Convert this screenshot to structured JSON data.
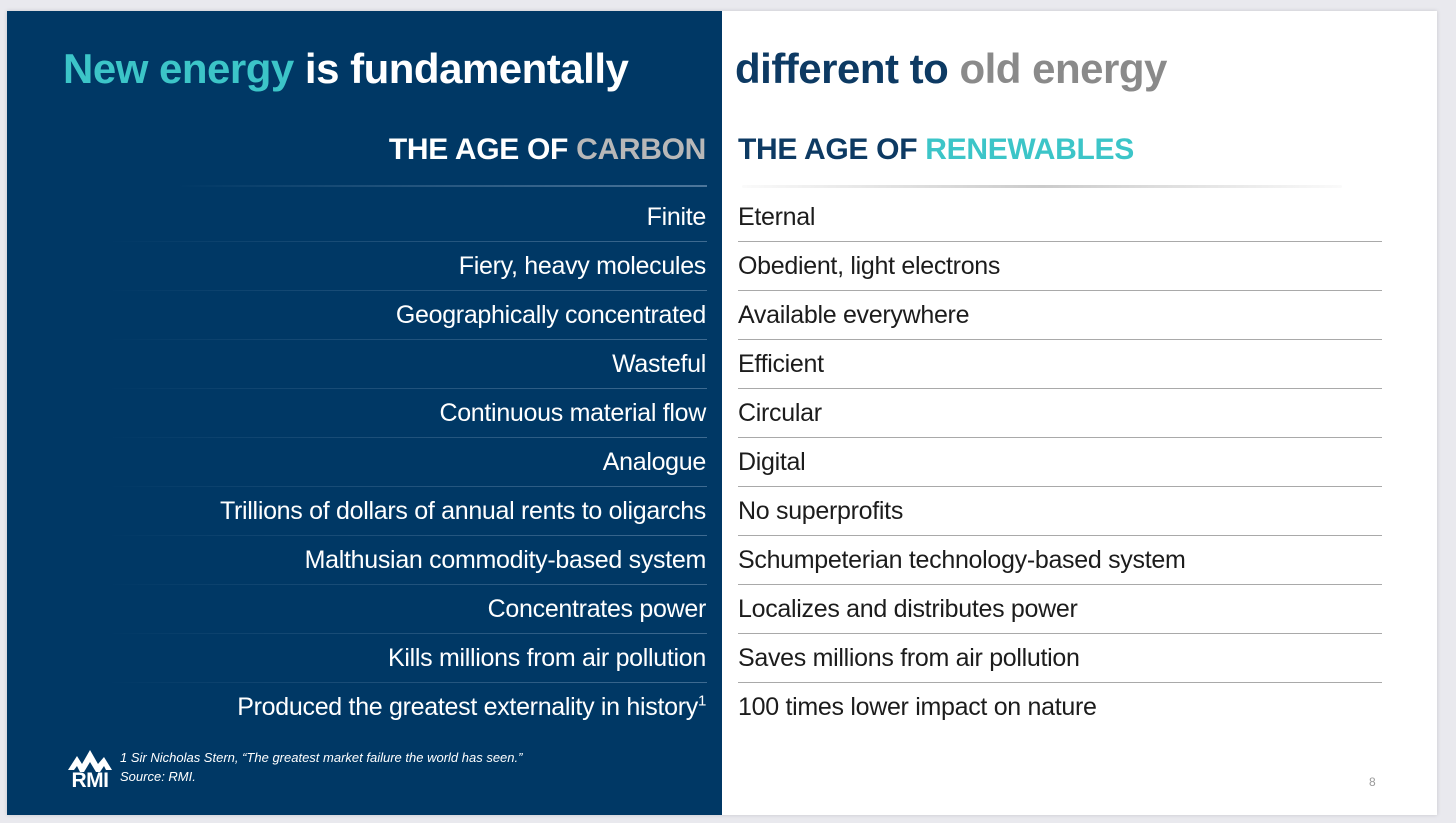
{
  "title": {
    "part1": "New energy",
    "part2": " is fundamentally",
    "part3": "different to",
    "part4": " old energy"
  },
  "columns": {
    "left_prefix": "THE AGE OF ",
    "left_highlight": "CARBON",
    "right_prefix": "THE AGE OF ",
    "right_highlight": "RENEWABLES"
  },
  "rows": [
    {
      "left": "Finite",
      "right": "Eternal"
    },
    {
      "left": "Fiery, heavy molecules",
      "right": "Obedient, light electrons"
    },
    {
      "left": "Geographically concentrated",
      "right": "Available everywhere"
    },
    {
      "left": "Wasteful",
      "right": "Efficient"
    },
    {
      "left": "Continuous material flow",
      "right": "Circular"
    },
    {
      "left": "Analogue",
      "right": "Digital"
    },
    {
      "left": "Trillions of dollars of annual rents to oligarchs",
      "right": "No superprofits"
    },
    {
      "left": "Malthusian commodity-based system",
      "right": "Schumpeterian technology-based system"
    },
    {
      "left": "Concentrates power",
      "right": "Localizes and distributes power"
    },
    {
      "left": "Kills millions from air pollution",
      "right": "Saves millions from air pollution"
    },
    {
      "left": "Produced the greatest externality in history",
      "left_sup": "1",
      "right": "100 times lower impact on nature"
    }
  ],
  "footnote": {
    "line1": "1  Sir Nicholas Stern, “The greatest market failure the world has seen.”",
    "line2": "Source: RMI."
  },
  "logo": {
    "text": "RMI"
  },
  "page_number": "8",
  "colors": {
    "navy": "#003865",
    "teal": "#3cc5c8",
    "grey": "#8a8a8a"
  }
}
